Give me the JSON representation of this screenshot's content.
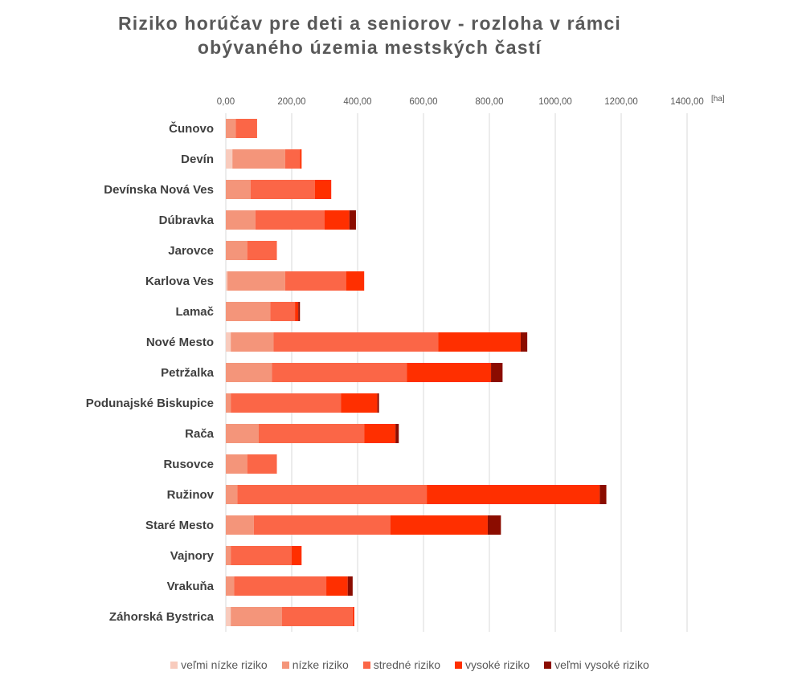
{
  "chart_data": {
    "type": "bar",
    "orientation": "horizontal",
    "stacked": true,
    "title_lines": [
      "Riziko horúčav pre deti a seniorov - rozloha v rámci",
      "obývaného územia mestských častí"
    ],
    "unit": "[ha]",
    "xlim": [
      0,
      1400
    ],
    "xticks": [
      0,
      200,
      400,
      600,
      800,
      1000,
      1200,
      1400
    ],
    "xtick_labels": [
      "0,00",
      "200,00",
      "400,00",
      "600,00",
      "800,00",
      "1000,00",
      "1200,00",
      "1400,00"
    ],
    "axis_position": "top",
    "grid": "vertical",
    "legend_position": "bottom",
    "categories": [
      "Čunovo",
      "Devín",
      "Devínska Nová Ves",
      "Dúbravka",
      "Jarovce",
      "Karlova Ves",
      "Lamač",
      "Nové Mesto",
      "Petržalka",
      "Podunajské Biskupice",
      "Rača",
      "Rusovce",
      "Ružinov",
      "Staré Mesto",
      "Vajnory",
      "Vrakuňa",
      "Záhorská Bystrica"
    ],
    "series": [
      {
        "name": "veľmi nízke riziko",
        "color": "#f8cbbd",
        "values": [
          0,
          20,
          0,
          0,
          0,
          5,
          0,
          15,
          0,
          0,
          0,
          0,
          0,
          0,
          0,
          0,
          15
        ]
      },
      {
        "name": "nízke riziko",
        "color": "#f4957a",
        "values": [
          30,
          160,
          75,
          90,
          65,
          175,
          135,
          130,
          140,
          15,
          100,
          65,
          35,
          85,
          15,
          25,
          155
        ]
      },
      {
        "name": "stredné riziko",
        "color": "#fb6647",
        "values": [
          65,
          45,
          195,
          210,
          90,
          185,
          75,
          500,
          410,
          335,
          320,
          90,
          575,
          415,
          185,
          280,
          215
        ]
      },
      {
        "name": "vysoké riziko",
        "color": "#ff2f00",
        "values": [
          0,
          5,
          50,
          75,
          0,
          55,
          10,
          250,
          255,
          110,
          95,
          0,
          525,
          295,
          30,
          65,
          5
        ]
      },
      {
        "name": "veľmi vysoké riziko",
        "color": "#8b0c00",
        "values": [
          0,
          0,
          0,
          20,
          0,
          0,
          5,
          20,
          35,
          5,
          10,
          0,
          20,
          40,
          0,
          15,
          0
        ]
      }
    ]
  }
}
